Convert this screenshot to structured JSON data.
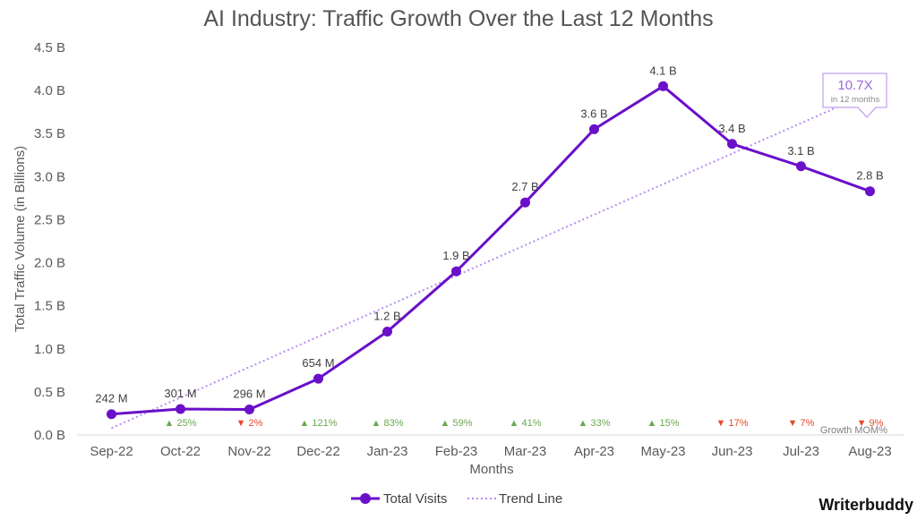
{
  "colors": {
    "series": "#6a10c9",
    "trend": "#b88cf0",
    "up": "#6aa84f",
    "down": "#e8492a",
    "grid": "#d9d9d9",
    "callout": "#b48be8"
  },
  "chart_data": {
    "type": "line",
    "title": "AI Industry: Traffic Growth Over the Last 12 Months",
    "xlabel": "Months",
    "ylabel": "Total Traffic Volume (in Billions)",
    "ylim": [
      0,
      4.5
    ],
    "yticks": [
      0,
      0.5,
      1.0,
      1.5,
      2.0,
      2.5,
      3.0,
      3.5,
      4.0,
      4.5
    ],
    "ytick_labels": [
      "0.0 B",
      "0.5 B",
      "1.0 B",
      "1.5 B",
      "2.0 B",
      "2.5 B",
      "3.0 B",
      "3.5 B",
      "4.0 B",
      "4.5 B"
    ],
    "grid": false,
    "legend_position": "bottom",
    "categories": [
      "Sep-22",
      "Oct-22",
      "Nov-22",
      "Dec-22",
      "Jan-23",
      "Feb-23",
      "Mar-23",
      "Apr-23",
      "May-23",
      "Jun-23",
      "Jul-23",
      "Aug-23"
    ],
    "series": [
      {
        "name": "Total Visits",
        "values": [
          0.242,
          0.301,
          0.296,
          0.654,
          1.2,
          1.9,
          2.7,
          3.55,
          4.05,
          3.38,
          3.12,
          2.83
        ],
        "labels": [
          "242 M",
          "301 M",
          "296 M",
          "654 M",
          "1.2 B",
          "1.9 B",
          "2.7 B",
          "3.6 B",
          "4.1 B",
          "3.4 B",
          "3.1 B",
          "2.8 B"
        ]
      },
      {
        "name": "Trend Line",
        "style": "dotted",
        "start": 0.08,
        "end": 3.92
      }
    ],
    "growth_mom": {
      "title": "Growth MOM%",
      "values": [
        {
          "dir": "up",
          "label": "25%"
        },
        {
          "dir": "down",
          "label": "2%"
        },
        {
          "dir": "up",
          "label": "121%"
        },
        {
          "dir": "up",
          "label": "83%"
        },
        {
          "dir": "up",
          "label": "59%"
        },
        {
          "dir": "up",
          "label": "41%"
        },
        {
          "dir": "up",
          "label": "33%"
        },
        {
          "dir": "up",
          "label": "15%"
        },
        {
          "dir": "down",
          "label": "17%"
        },
        {
          "dir": "down",
          "label": "7%"
        },
        {
          "dir": "down",
          "label": "9%"
        }
      ]
    },
    "callout": {
      "value": "10.7X",
      "text": "in 12 months"
    }
  },
  "brand": "Writerbuddy"
}
